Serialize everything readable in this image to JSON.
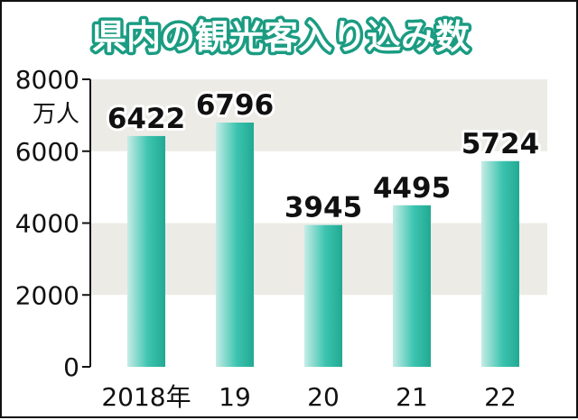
{
  "chart_data": {
    "type": "bar",
    "title": "県内の観光客入り込み数",
    "unit": "万人",
    "categories": [
      "2018年",
      "19",
      "20",
      "21",
      "22"
    ],
    "values": [
      6422,
      6796,
      3945,
      4495,
      5724
    ],
    "data_labels": [
      "6422",
      "6796",
      "3945",
      "4495",
      "5724"
    ],
    "ylim": [
      0,
      8000
    ],
    "yticks": [
      0,
      2000,
      4000,
      6000,
      8000
    ],
    "ytick_labels": [
      "0",
      "2000",
      "4000",
      "6000",
      "8000"
    ],
    "grid": "alternating horizontal bands",
    "colors": {
      "bar_light": "#c6ece6",
      "bar_main": "#3cc4b0",
      "bar_dark": "#21a993",
      "band": "#ecebe6",
      "title_outline": "#1a9c82"
    }
  }
}
